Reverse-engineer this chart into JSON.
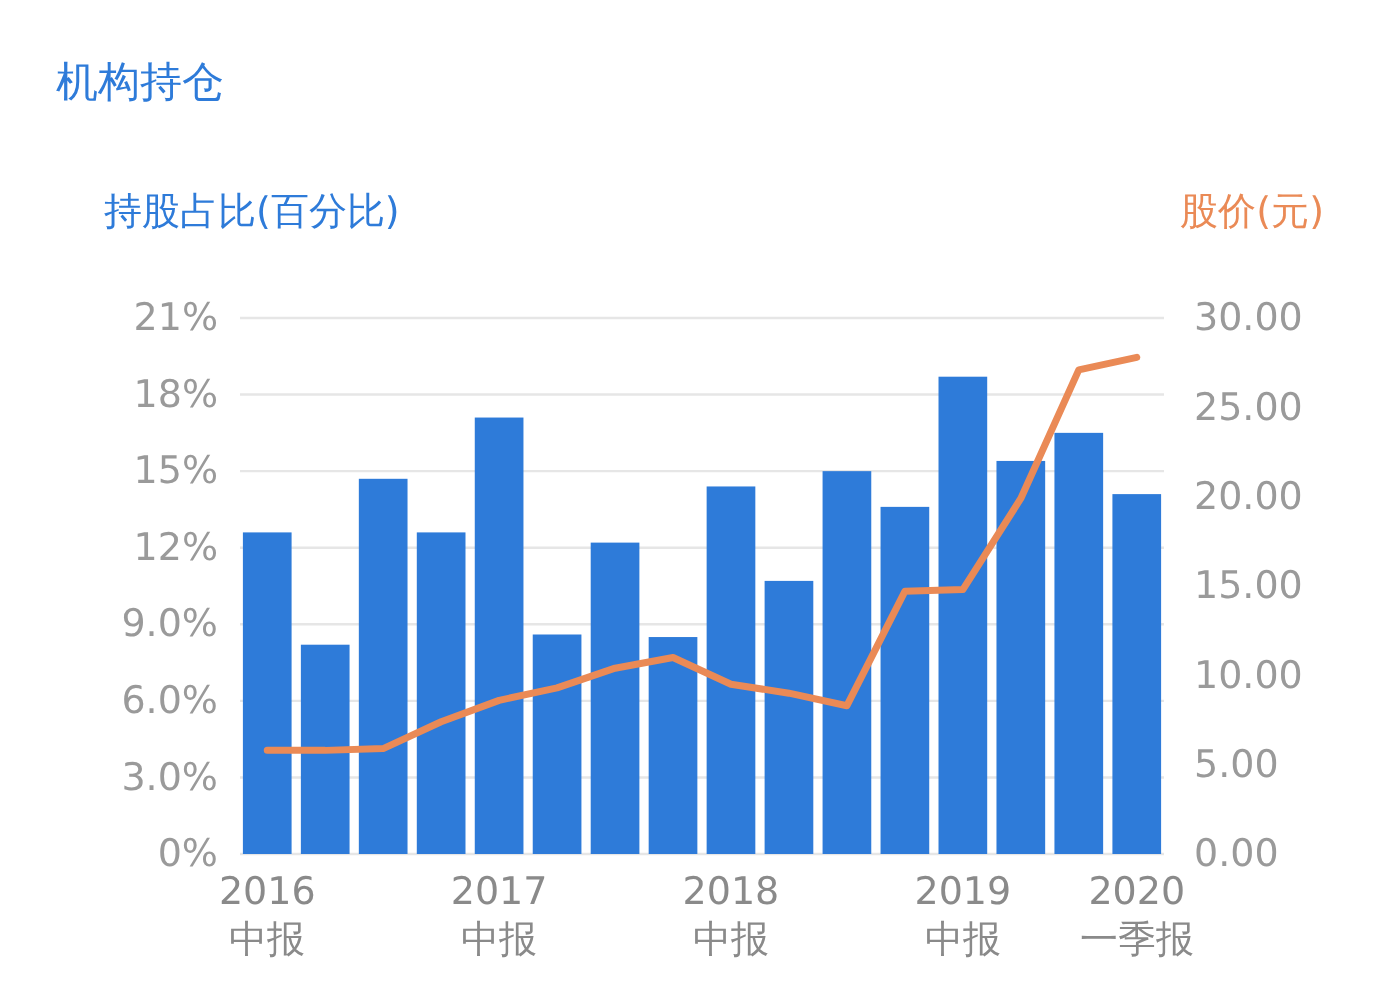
{
  "chart_data": {
    "type": "bar",
    "title": "机构持仓",
    "ylabel": "持股占比(百分比)",
    "y2label": "股价(元)",
    "categories": [
      "2016\n中报",
      null,
      null,
      null,
      "2017\n中报",
      null,
      null,
      null,
      "2018\n中报",
      null,
      null,
      null,
      "2019\n中报",
      null,
      null,
      "2020\n一季报"
    ],
    "series": [
      {
        "color": "#2e7bd9",
        "values": [
          12.6,
          8.2,
          14.7,
          12.6,
          17.1,
          8.6,
          12.2,
          8.5,
          14.4,
          10.7,
          15.0,
          13.6,
          18.7,
          15.4,
          16.5,
          14.1
        ]
      },
      {
        "type": "line",
        "axis": "y2",
        "color": "#ea8a56",
        "values": [
          5.8,
          5.8,
          5.9,
          7.4,
          8.6,
          9.3,
          10.4,
          11.0,
          9.5,
          9.0,
          8.3,
          14.7,
          14.8,
          19.9,
          27.1,
          27.8
        ]
      }
    ],
    "ylim": [
      0,
      21
    ],
    "yticks": [
      {
        "value": 0,
        "label": "0%"
      },
      {
        "value": 3,
        "label": "3.0%"
      },
      {
        "value": 6,
        "label": "6.0%"
      },
      {
        "value": 9,
        "label": "9.0%"
      },
      {
        "value": 12,
        "label": "12%"
      },
      {
        "value": 15,
        "label": "15%"
      },
      {
        "value": 18,
        "label": "18%"
      },
      {
        "value": 21,
        "label": "21%"
      }
    ],
    "y2lim": [
      0,
      30
    ],
    "y2ticks": [
      {
        "value": 0,
        "label": "0.00"
      },
      {
        "value": 5,
        "label": "5.00"
      },
      {
        "value": 10,
        "label": "10.00"
      },
      {
        "value": 15,
        "label": "15.00"
      },
      {
        "value": 20,
        "label": "20.00"
      },
      {
        "value": 25,
        "label": "25.00"
      },
      {
        "value": 30,
        "label": "30.00"
      }
    ],
    "grid": "y",
    "marker": "none",
    "line_style": "solid"
  }
}
